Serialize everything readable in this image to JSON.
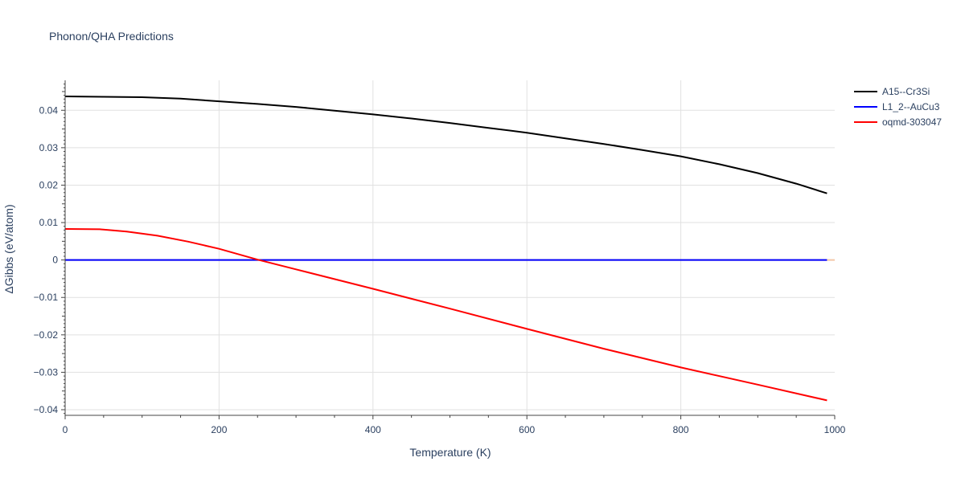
{
  "chart_data": {
    "type": "line",
    "title": "Phonon/QHA Predictions",
    "xlabel": "Temperature (K)",
    "ylabel": "ΔGibbs (eV/atom)",
    "xlim": [
      0,
      1000
    ],
    "ylim": [
      -0.0415,
      0.048
    ],
    "x_ticks": [
      0,
      200,
      400,
      600,
      800,
      1000
    ],
    "x_tick_labels": [
      "0",
      "200",
      "400",
      "600",
      "800",
      "1000"
    ],
    "y_ticks": [
      -0.04,
      -0.03,
      -0.02,
      -0.01,
      0,
      0.01,
      0.02,
      0.03,
      0.04
    ],
    "y_tick_labels": [
      "−0.04",
      "−0.03",
      "−0.02",
      "−0.01",
      "0",
      "0.01",
      "0.02",
      "0.03",
      "0.04"
    ],
    "grid": true,
    "legend_position": "top-right",
    "series": [
      {
        "name": "A15--Cr3Si",
        "color": "#000000",
        "x": [
          0,
          50,
          100,
          150,
          200,
          250,
          300,
          350,
          400,
          450,
          500,
          550,
          600,
          650,
          700,
          750,
          800,
          850,
          900,
          950,
          990
        ],
        "y": [
          0.0437,
          0.0436,
          0.0435,
          0.0431,
          0.0424,
          0.0417,
          0.0409,
          0.0399,
          0.0389,
          0.0378,
          0.0366,
          0.0353,
          0.034,
          0.0325,
          0.031,
          0.0294,
          0.0277,
          0.0256,
          0.0232,
          0.0204,
          0.0178
        ]
      },
      {
        "name": "L1_2--AuCu3",
        "color": "#0000ff",
        "x": [
          0,
          990
        ],
        "y": [
          0,
          0
        ]
      },
      {
        "name": "oqmd-303047",
        "color": "#ff0000",
        "x": [
          0,
          45,
          80,
          120,
          160,
          200,
          250,
          300,
          400,
          500,
          600,
          700,
          800,
          900,
          990
        ],
        "y": [
          0.0083,
          0.0082,
          0.0076,
          0.0065,
          0.0049,
          0.003,
          0.0001,
          -0.0025,
          -0.0077,
          -0.013,
          -0.0184,
          -0.0237,
          -0.0287,
          -0.0333,
          -0.0375
        ]
      }
    ]
  }
}
